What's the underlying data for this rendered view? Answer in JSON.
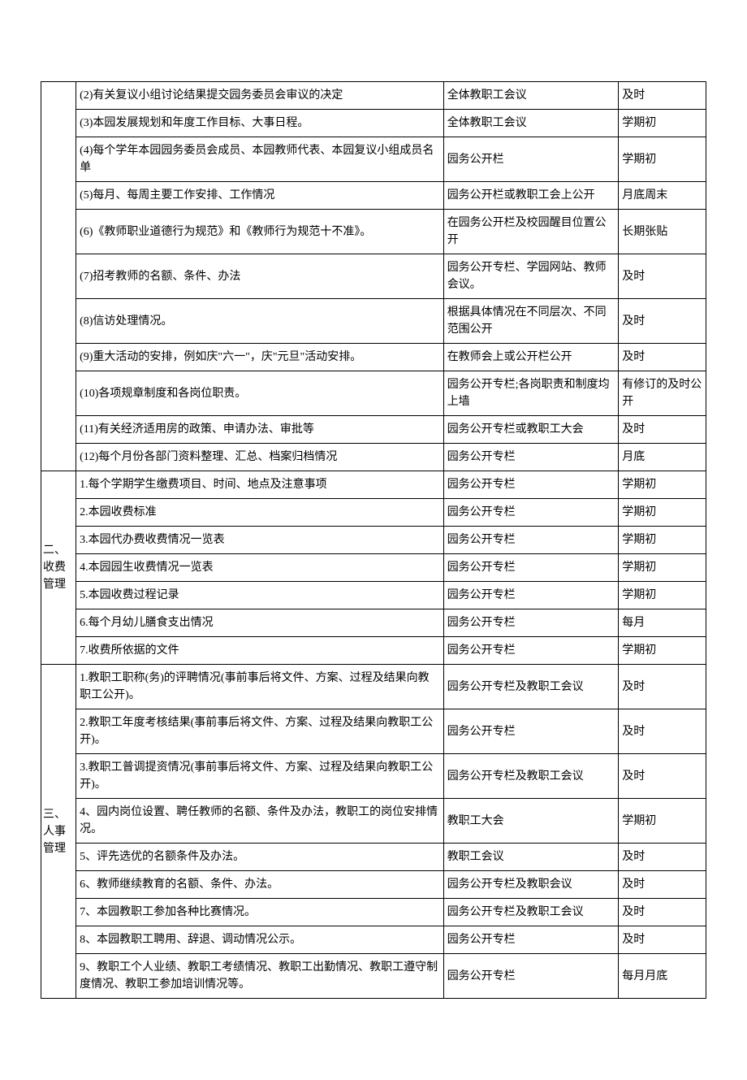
{
  "sections": [
    {
      "category": "",
      "rows": [
        {
          "content": "(2)有关复议小组讨论结果提交园务委员会审议的决定",
          "method": "全体教职工会议",
          "time": "及时"
        },
        {
          "content": "(3)本园发展规划和年度工作目标、大事日程。",
          "method": "全体教职工会议",
          "time": "学期初"
        },
        {
          "content": "(4)每个学年本园园务委员会成员、本园教师代表、本园复议小组成员名单",
          "method": "园务公开栏",
          "time": "学期初"
        },
        {
          "content": "(5)每月、每周主要工作安排、工作情况",
          "method": "园务公开栏或教职工会上公开",
          "time": "月底周末"
        },
        {
          "content": "(6)《教师职业道德行为规范》和《教师行为规范十不准》。",
          "method": "在园务公开栏及校园醒目位置公开",
          "time": "长期张贴"
        },
        {
          "content": "(7)招考教师的名额、条件、办法",
          "method": "园务公开专栏、学园网站、教师会议。",
          "time": "及时"
        },
        {
          "content": "(8)信访处理情况。",
          "method": "根据具体情况在不同层次、不同范围公开",
          "time": "及时"
        },
        {
          "content": "(9)重大活动的安排，例如庆\"六一\"，庆\"元旦\"活动安排。",
          "method": "在教师会上或公开栏公开",
          "time": "及时"
        },
        {
          "content": "(10)各项规章制度和各岗位职责。",
          "method": "园务公开专栏;各岗职责和制度均上墙",
          "time": "有修订的及时公开"
        },
        {
          "content": "(11)有关经济适用房的政策、申请办法、审批等",
          "method": "园务公开专栏或教职工大会",
          "time": "及时"
        },
        {
          "content": "(12)每个月份各部门资料整理、汇总、档案归档情况",
          "method": "园务公开专栏",
          "time": "月底"
        }
      ]
    },
    {
      "category": "二、收费管理",
      "rows": [
        {
          "content": "1.每个学期学生缴费项目、时间、地点及注意事项",
          "method": "园务公开专栏",
          "time": "学期初"
        },
        {
          "content": "2.本园收费标准",
          "method": "园务公开专栏",
          "time": "学期初"
        },
        {
          "content": "3.本园代办费收费情况一览表",
          "method": "园务公开专栏",
          "time": "学期初"
        },
        {
          "content": "4.本园园生收费情况一览表",
          "method": "园务公开专栏",
          "time": "学期初"
        },
        {
          "content": "5.本园收费过程记录",
          "method": "园务公开专栏",
          "time": "学期初"
        },
        {
          "content": "6.每个月幼儿膳食支出情况",
          "method": "园务公开专栏",
          "time": "每月"
        },
        {
          "content": "7.收费所依据的文件",
          "method": "园务公开专栏",
          "time": "学期初"
        }
      ]
    },
    {
      "category": "三、人事管理",
      "rows": [
        {
          "content": "1.教职工职称(务)的评聘情况(事前事后将文件、方案、过程及结果向教职工公开)。",
          "method": "园务公开专栏及教职工会议",
          "time": "及时"
        },
        {
          "content": "2.教职工年度考核结果(事前事后将文件、方案、过程及结果向教职工公开)。",
          "method": "园务公开专栏",
          "time": "及时"
        },
        {
          "content": "3.教职工普调提资情况(事前事后将文件、方案、过程及结果向教职工公开)。",
          "method": "园务公开专栏及教职工会议",
          "time": "及时"
        },
        {
          "content": "4、园内岗位设置、聘任教师的名额、条件及办法，教职工的岗位安排情况。",
          "method": "教职工大会",
          "time": "学期初"
        },
        {
          "content": "5、评先选优的名额条件及办法。",
          "method": "教职工会议",
          "time": "及时"
        },
        {
          "content": "6、教师继续教育的名额、条件、办法。",
          "method": "园务公开专栏及教职会议",
          "time": "及时"
        },
        {
          "content": "7、本园教职工参加各种比赛情况。",
          "method": "园务公开专栏及教职工会议",
          "time": "及时"
        },
        {
          "content": "8、本园教职工聘用、辞退、调动情况公示。",
          "method": "园务公开专栏",
          "time": "及时"
        },
        {
          "content": "9、教职工个人业绩、教职工考绩情况、教职工出勤情况、教职工遵守制度情况、教职工参加培训情况等。",
          "method": "园务公开专栏",
          "time": "每月月底"
        }
      ]
    }
  ]
}
